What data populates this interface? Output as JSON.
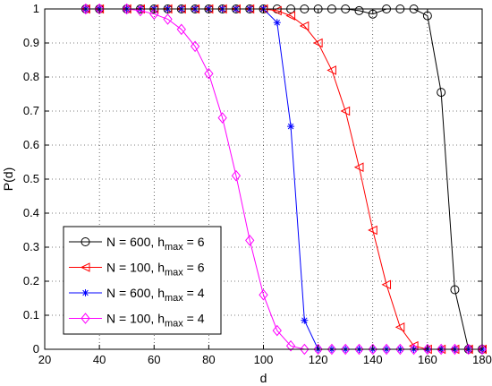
{
  "chart_data": {
    "type": "line",
    "title": "",
    "xlabel": "d",
    "ylabel": "P(d)",
    "xlim": [
      20,
      180
    ],
    "ylim": [
      0,
      1
    ],
    "xticks": [
      20,
      40,
      60,
      80,
      100,
      120,
      140,
      160,
      180
    ],
    "yticks": [
      0,
      0.1,
      0.2,
      0.3,
      0.4,
      0.5,
      0.6,
      0.7,
      0.8,
      0.9,
      1
    ],
    "grid": true,
    "legend_position": "lower-left",
    "series": [
      {
        "legend": {
          "prefix": "N = 600, h",
          "sub": "max",
          "suffix": " = 6"
        },
        "color": "#000000",
        "marker": "circle",
        "x": [
          35,
          40,
          50,
          55,
          60,
          65,
          70,
          75,
          80,
          85,
          90,
          95,
          100,
          105,
          110,
          115,
          120,
          125,
          130,
          135,
          140,
          145,
          150,
          155,
          160,
          165,
          170,
          175,
          180
        ],
        "y": [
          1,
          1,
          1,
          1,
          1,
          1,
          1,
          1,
          1,
          1,
          1,
          1,
          1,
          1,
          1,
          1,
          1,
          1,
          1,
          0.995,
          0.985,
          1,
          1,
          1,
          0.98,
          0.755,
          0.175,
          0,
          0
        ]
      },
      {
        "legend": {
          "prefix": "N = 100, h",
          "sub": "max",
          "suffix": " = 6"
        },
        "color": "#ff0000",
        "marker": "triangle-left",
        "x": [
          35,
          40,
          50,
          55,
          60,
          65,
          70,
          75,
          80,
          85,
          90,
          95,
          100,
          105,
          110,
          115,
          120,
          125,
          130,
          135,
          140,
          145,
          150,
          155,
          160,
          165,
          170,
          175,
          180
        ],
        "y": [
          1,
          1,
          1,
          1,
          1,
          1,
          1,
          1,
          1,
          1,
          1,
          1,
          1,
          0.995,
          0.98,
          0.95,
          0.9,
          0.82,
          0.7,
          0.535,
          0.35,
          0.19,
          0.065,
          0.01,
          0,
          0,
          0,
          0,
          0
        ]
      },
      {
        "legend": {
          "prefix": "N = 600, h",
          "sub": "max",
          "suffix": " = 4"
        },
        "color": "#0000ff",
        "marker": "star",
        "x": [
          35,
          40,
          50,
          55,
          60,
          65,
          70,
          75,
          80,
          85,
          90,
          95,
          100,
          105,
          110,
          115,
          120,
          125,
          130,
          135,
          140,
          145,
          150,
          155,
          160,
          165,
          170,
          175,
          180
        ],
        "y": [
          1,
          1,
          1,
          1,
          1,
          1,
          1,
          1,
          1,
          1,
          1,
          1,
          1,
          0.96,
          0.655,
          0.085,
          0,
          0,
          0,
          0,
          0,
          0,
          0,
          0,
          0,
          0,
          0,
          0,
          0
        ]
      },
      {
        "legend": {
          "prefix": "N = 100, h",
          "sub": "max",
          "suffix": " = 4"
        },
        "color": "#ff00ff",
        "marker": "diamond",
        "x": [
          35,
          40,
          50,
          55,
          60,
          65,
          70,
          75,
          80,
          85,
          90,
          95,
          100,
          105,
          110,
          115,
          120,
          125,
          130,
          135,
          140,
          145,
          150,
          155,
          160,
          165,
          170,
          175,
          180
        ],
        "y": [
          1,
          1,
          1,
          0.995,
          0.985,
          0.97,
          0.94,
          0.89,
          0.81,
          0.68,
          0.51,
          0.32,
          0.16,
          0.055,
          0.01,
          0,
          0,
          0,
          0,
          0,
          0,
          0,
          0,
          0,
          0,
          0,
          0,
          0,
          0
        ]
      }
    ]
  }
}
